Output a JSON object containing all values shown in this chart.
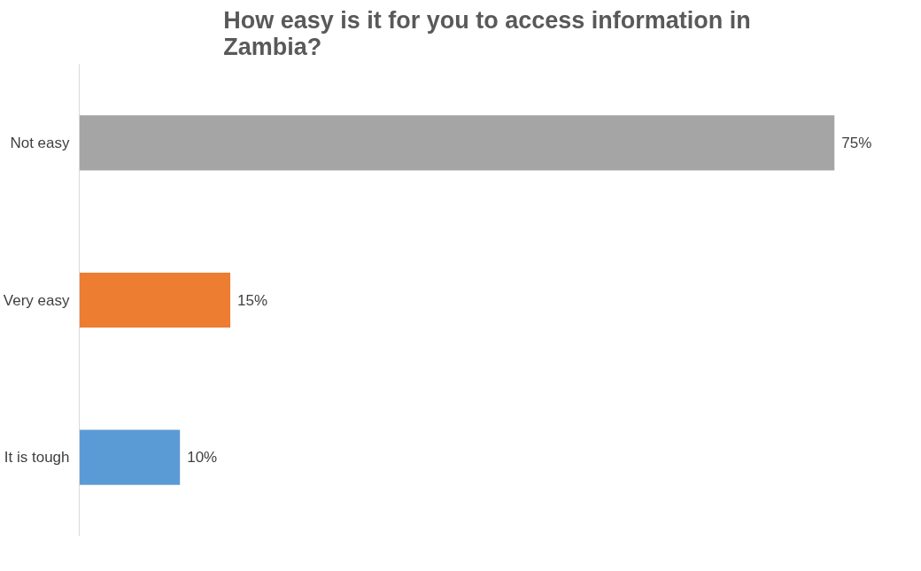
{
  "chart_data": {
    "type": "bar",
    "orientation": "horizontal",
    "title": "How easy is it for you to access information in Zambia?",
    "categories": [
      "Not easy",
      "Very easy",
      "It is tough"
    ],
    "values": [
      75,
      15,
      10
    ],
    "colors": [
      "#a5a5a5",
      "#ed7d31",
      "#5b9bd5"
    ],
    "value_labels": [
      "75%",
      "15%",
      "10%"
    ],
    "grid": false
  }
}
